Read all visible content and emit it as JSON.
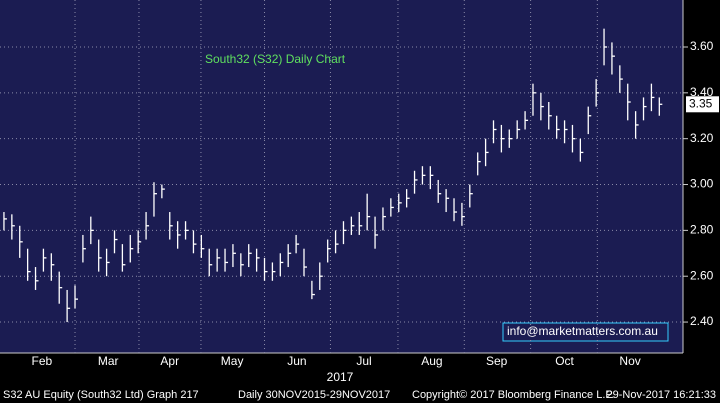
{
  "chart_data": {
    "type": "ohlc",
    "title": "South32 (S32) Daily Chart",
    "annotation": "info@marketmatters.com.au",
    "year_label": "2017",
    "last_price": 3.35,
    "footer": [
      "S32 AU Equity (South32 Ltd) Graph 217",
      "Daily 30NOV2015-29NOV2017",
      "Copyright© 2017 Bloomberg Finance L.P.",
      "29-Nov-2017 16:21:33"
    ],
    "series": [
      {
        "color": "#ffffff",
        "values": [
          2.85,
          2.82,
          2.75,
          2.62,
          2.58,
          2.68,
          2.65,
          2.55,
          2.46,
          2.5,
          2.72,
          2.8,
          2.68,
          2.66,
          2.76,
          2.65,
          2.72,
          2.75,
          2.82,
          2.96,
          2.98,
          2.82,
          2.78,
          2.8,
          2.74,
          2.72,
          2.65,
          2.68,
          2.66,
          2.7,
          2.65,
          2.7,
          2.68,
          2.62,
          2.62,
          2.66,
          2.7,
          2.74,
          2.64,
          2.52,
          2.6,
          2.72,
          2.74,
          2.8,
          2.82,
          2.82,
          2.86,
          2.78,
          2.86,
          2.9,
          2.92,
          2.94,
          3.02,
          3.04,
          3.04,
          2.96,
          2.94,
          2.88,
          2.86,
          2.96,
          3.1,
          3.14,
          3.24,
          3.2,
          3.2,
          3.24,
          3.28,
          3.4,
          3.34,
          3.3,
          3.24,
          3.24,
          3.2,
          3.14,
          3.3,
          3.4,
          3.6,
          3.56,
          3.46,
          3.36,
          3.26,
          3.34,
          3.38,
          3.35
        ],
        "highs": [
          2.88,
          2.87,
          2.82,
          2.72,
          2.64,
          2.72,
          2.7,
          2.62,
          2.54,
          2.56,
          2.78,
          2.86,
          2.76,
          2.72,
          2.8,
          2.74,
          2.78,
          2.8,
          2.88,
          3.01,
          3.0,
          2.88,
          2.84,
          2.84,
          2.8,
          2.78,
          2.72,
          2.72,
          2.72,
          2.74,
          2.7,
          2.74,
          2.72,
          2.68,
          2.66,
          2.7,
          2.74,
          2.78,
          2.72,
          2.58,
          2.66,
          2.76,
          2.8,
          2.84,
          2.86,
          2.88,
          2.96,
          2.86,
          2.9,
          2.94,
          2.96,
          2.98,
          3.06,
          3.08,
          3.08,
          3.02,
          2.98,
          2.94,
          2.92,
          3.0,
          3.14,
          3.2,
          3.28,
          3.26,
          3.24,
          3.28,
          3.32,
          3.44,
          3.4,
          3.36,
          3.3,
          3.28,
          3.26,
          3.2,
          3.34,
          3.46,
          3.68,
          3.62,
          3.52,
          3.44,
          3.32,
          3.38,
          3.44,
          3.38
        ],
        "lows": [
          2.8,
          2.76,
          2.68,
          2.58,
          2.54,
          2.62,
          2.58,
          2.48,
          2.4,
          2.46,
          2.66,
          2.74,
          2.62,
          2.6,
          2.7,
          2.62,
          2.66,
          2.7,
          2.76,
          2.86,
          2.94,
          2.76,
          2.72,
          2.76,
          2.7,
          2.68,
          2.6,
          2.62,
          2.62,
          2.64,
          2.6,
          2.64,
          2.62,
          2.58,
          2.58,
          2.6,
          2.64,
          2.7,
          2.6,
          2.5,
          2.54,
          2.66,
          2.7,
          2.74,
          2.78,
          2.78,
          2.8,
          2.72,
          2.8,
          2.86,
          2.88,
          2.9,
          2.96,
          3.0,
          2.98,
          2.92,
          2.88,
          2.84,
          2.82,
          2.9,
          3.04,
          3.08,
          3.18,
          3.14,
          3.16,
          3.2,
          3.24,
          3.3,
          3.28,
          3.24,
          3.2,
          3.18,
          3.14,
          3.1,
          3.22,
          3.34,
          3.52,
          3.48,
          3.4,
          3.28,
          3.2,
          3.28,
          3.32,
          3.3
        ]
      }
    ],
    "xlim": [
      -0.5,
      86
    ],
    "xticks": [
      {
        "value": 4.8,
        "label": "Feb"
      },
      {
        "value": 13.2,
        "label": "Mar"
      },
      {
        "value": 21.0,
        "label": "Apr"
      },
      {
        "value": 28.9,
        "label": "May"
      },
      {
        "value": 37.1,
        "label": "Jun"
      },
      {
        "value": 45.6,
        "label": "Jul"
      },
      {
        "value": 54.2,
        "label": "Aug"
      },
      {
        "value": 62.4,
        "label": "Sep"
      },
      {
        "value": 71.0,
        "label": "Oct"
      },
      {
        "value": 79.3,
        "label": "Nov"
      }
    ],
    "ylim": [
      2.265,
      3.805
    ],
    "yticks": [
      {
        "value": 2.4,
        "label": "2.40"
      },
      {
        "value": 2.6,
        "label": "2.60"
      },
      {
        "value": 2.8,
        "label": "2.80"
      },
      {
        "value": 3.0,
        "label": "3.00"
      },
      {
        "value": 3.2,
        "label": "3.20"
      },
      {
        "value": 3.4,
        "label": "3.40"
      },
      {
        "value": 3.6,
        "label": "3.60"
      }
    ],
    "grid": true
  }
}
